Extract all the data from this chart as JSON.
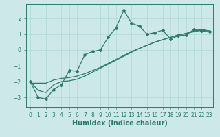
{
  "xlabel": "Humidex (Indice chaleur)",
  "ylabel": "",
  "bg_color": "#cce8e8",
  "line_color": "#2d7b6e",
  "grid_color": "#b0d8d8",
  "x_data": [
    0,
    1,
    2,
    3,
    4,
    5,
    6,
    7,
    8,
    9,
    10,
    11,
    12,
    13,
    14,
    15,
    16,
    17,
    18,
    19,
    20,
    21,
    22,
    23
  ],
  "y_main": [
    -2.0,
    -3.0,
    -3.1,
    -2.5,
    -2.2,
    -1.3,
    -1.35,
    -0.3,
    -0.1,
    0.0,
    0.8,
    1.4,
    2.5,
    1.7,
    1.5,
    1.0,
    1.1,
    1.25,
    0.7,
    0.9,
    0.95,
    1.3,
    1.2,
    1.15
  ],
  "y_reg1": [
    -2.1,
    -2.1,
    -2.1,
    -1.9,
    -1.8,
    -1.75,
    -1.65,
    -1.5,
    -1.3,
    -1.1,
    -0.85,
    -0.6,
    -0.35,
    -0.1,
    0.1,
    0.3,
    0.5,
    0.65,
    0.8,
    0.95,
    1.05,
    1.15,
    1.25,
    1.2
  ],
  "y_reg2": [
    -2.0,
    -2.55,
    -2.7,
    -2.2,
    -2.0,
    -1.95,
    -1.85,
    -1.65,
    -1.4,
    -1.15,
    -0.9,
    -0.65,
    -0.4,
    -0.15,
    0.1,
    0.3,
    0.5,
    0.65,
    0.8,
    0.95,
    1.05,
    1.2,
    1.3,
    1.2
  ],
  "xlim": [
    -0.5,
    23.5
  ],
  "ylim": [
    -3.6,
    2.9
  ],
  "yticks": [
    -3,
    -2,
    -1,
    0,
    1,
    2
  ],
  "xticks": [
    0,
    1,
    2,
    3,
    4,
    5,
    6,
    7,
    8,
    9,
    10,
    11,
    12,
    13,
    14,
    15,
    16,
    17,
    18,
    19,
    20,
    21,
    22,
    23
  ],
  "xtick_labels": [
    "0",
    "1",
    "2",
    "3",
    "4",
    "5",
    "6",
    "7",
    "8",
    "9",
    "10",
    "11",
    "12",
    "13",
    "14",
    "15",
    "16",
    "17",
    "18",
    "19",
    "20",
    "21",
    "22",
    "23"
  ],
  "tick_fontsize": 5.5,
  "xlabel_fontsize": 7,
  "linewidth": 0.9,
  "marker": "D",
  "markersize": 2.0
}
